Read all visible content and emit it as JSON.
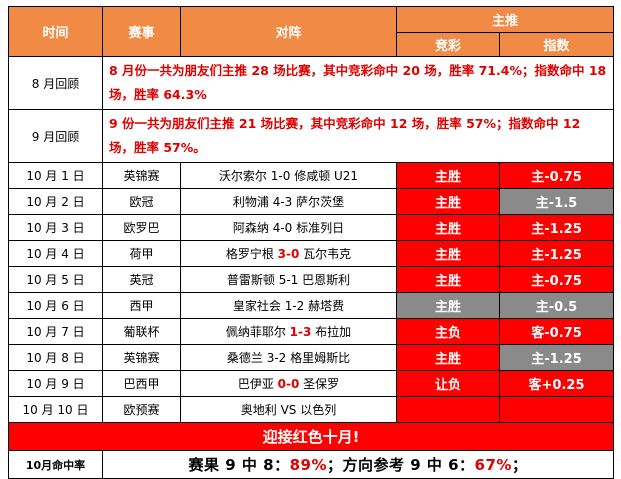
{
  "header": {
    "col_time": "时间",
    "col_event": "赛事",
    "col_match": "对阵",
    "col_main_pick": "主推",
    "col_jingcai": "竞彩",
    "col_index": "指数"
  },
  "reviews": [
    {
      "label": "8 月回顾",
      "text": "8 月份一共为朋友们主推 28 场比赛，其中竞彩命中 20 场，胜率 71.4%；指数命中 18 场，胜率 64.3%"
    },
    {
      "label": "9 月回顾",
      "text": "9 份一共为朋友们主推 21 场比赛，其中竞彩命中 12 场，胜率 57%；指数命中 12 场，胜率 57%。"
    }
  ],
  "rows": [
    {
      "date": "10 月 1 日",
      "event": "英锦赛",
      "home": "沃尔索尔",
      "score": "1-0",
      "away": "修咸顿 U21",
      "score_hl": false,
      "jingcai": "主胜",
      "jingcai_color": "#ff0000",
      "index": "主-0.75",
      "index_color": "#ff0000"
    },
    {
      "date": "10 月 2 日",
      "event": "欧冠",
      "home": "利物浦",
      "score": "4-3",
      "away": "萨尔茨堡",
      "score_hl": false,
      "jingcai": "主胜",
      "jingcai_color": "#ff0000",
      "index": "主-1.5",
      "index_color": "#8a8a8a"
    },
    {
      "date": "10 月 3 日",
      "event": "欧罗巴",
      "home": "阿森纳",
      "score": "4-0",
      "away": "标准列日",
      "score_hl": false,
      "jingcai": "主胜",
      "jingcai_color": "#ff0000",
      "index": "主-1.25",
      "index_color": "#ff0000"
    },
    {
      "date": "10 月 4 日",
      "event": "荷甲",
      "home": "格罗宁根",
      "score": "3-0",
      "away": "瓦尔韦克",
      "score_hl": true,
      "jingcai": "主胜",
      "jingcai_color": "#ff0000",
      "index": "主-1.25",
      "index_color": "#ff0000"
    },
    {
      "date": "10 月 5 日",
      "event": "英冠",
      "home": "普雷斯顿",
      "score": "5-1",
      "away": "巴恩斯利",
      "score_hl": false,
      "jingcai": "主胜",
      "jingcai_color": "#ff0000",
      "index": "主-0.75",
      "index_color": "#ff0000"
    },
    {
      "date": "10 月 6 日",
      "event": "西甲",
      "home": "皇家社会",
      "score": "1-2",
      "away": "赫塔费",
      "score_hl": false,
      "jingcai": "主胜",
      "jingcai_color": "#8a8a8a",
      "index": "主-0.5",
      "index_color": "#8a8a8a"
    },
    {
      "date": "10 月 7 日",
      "event": "葡联杯",
      "home": "佩纳菲耶尔",
      "score": "1-3",
      "away": "布拉加",
      "score_hl": true,
      "jingcai": "主负",
      "jingcai_color": "#ff0000",
      "index": "客-0.75",
      "index_color": "#ff0000"
    },
    {
      "date": "10 月 8 日",
      "event": "英锦赛",
      "home": "桑德兰",
      "score": "3-2",
      "away": "格里姆斯比",
      "score_hl": false,
      "jingcai": "主胜",
      "jingcai_color": "#ff0000",
      "index": "主-1.25",
      "index_color": "#8a8a8a"
    },
    {
      "date": "10 月 9 日",
      "event": "巴西甲",
      "home": "巴伊亚",
      "score": "0-0",
      "away": "圣保罗",
      "score_hl": true,
      "jingcai": "让负",
      "jingcai_color": "#ff0000",
      "index": "客+0.25",
      "index_color": "#ff0000"
    },
    {
      "date": "10 月 10 日",
      "event": "欧预赛",
      "home": "奥地利",
      "score": "VS",
      "away": "以色列",
      "score_hl": false,
      "jingcai": "",
      "jingcai_color": "#ff0000",
      "index": "",
      "index_color": "#ff0000"
    }
  ],
  "banner": "迎接红色十月!",
  "summary": {
    "label": "10月命中率",
    "part1": "赛果 9 中 8：",
    "pct1": "89%",
    "part2": "；方向参考 9 中 6：",
    "pct2": "67%",
    "part3": "；"
  }
}
